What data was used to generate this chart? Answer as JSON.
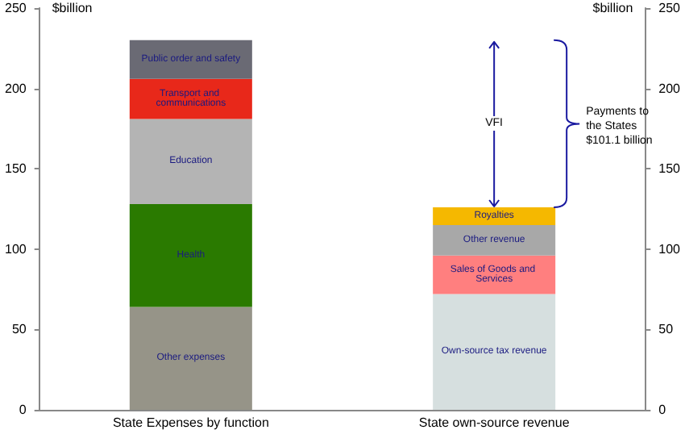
{
  "chart_data": {
    "type": "bar",
    "stacked": true,
    "categories": [
      "State Expenses by function",
      "State own-source revenue"
    ],
    "series": [
      {
        "name": "Other expenses",
        "color": "#969488",
        "values": [
          64,
          null
        ]
      },
      {
        "name": "Health",
        "color": "#2a7a00",
        "values": [
          64,
          null
        ]
      },
      {
        "name": "Education",
        "color": "#b4b4b4",
        "values": [
          53,
          null
        ]
      },
      {
        "name": "Transport and communications",
        "color": "#e8281a",
        "values": [
          25,
          null
        ]
      },
      {
        "name": "Public order and safety",
        "color": "#6a6a74",
        "values": [
          24,
          null
        ]
      },
      {
        "name": "Own-source tax revenue",
        "color": "#d6dfdf",
        "values": [
          null,
          72
        ]
      },
      {
        "name": "Sales of Goods and Services",
        "color": "#ff7f7f",
        "values": [
          null,
          24
        ]
      },
      {
        "name": "Other revenue",
        "color": "#a8a8a8",
        "values": [
          null,
          19
        ]
      },
      {
        "name": "Royalties",
        "color": "#f5b800",
        "values": [
          null,
          11
        ]
      }
    ],
    "ylabel": "$billion",
    "y2label": "$billion",
    "ylim": [
      0,
      250
    ],
    "yticks": [
      0,
      50,
      100,
      150,
      200,
      250
    ],
    "y2lim": [
      0,
      250
    ],
    "y2ticks": [
      0,
      50,
      100,
      150,
      200,
      250
    ],
    "annotations": [
      "VFI",
      "Payments to the States $101.1 billion"
    ],
    "grid": false,
    "legend": false
  }
}
